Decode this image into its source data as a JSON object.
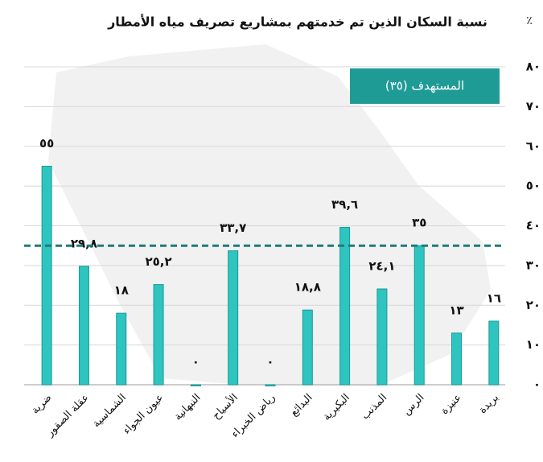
{
  "chart_data": {
    "type": "bar",
    "title": "نسبة السكان الذين تم خدمتهم بمشاريع تصريف مياه الأمطار",
    "y_unit": "٪",
    "categories": [
      "ضرية",
      "عقلة الصقور",
      "الشماسية",
      "عيون الجواء",
      "النبهانية",
      "الأسياح",
      "رياض الخبراء",
      "البدائع",
      "البكيرية",
      "المذنب",
      "الرس",
      "عنيزة",
      "بريدة"
    ],
    "values": [
      55,
      29.8,
      18,
      25.2,
      0,
      33.7,
      0,
      18.8,
      39.6,
      24.1,
      35,
      13,
      16
    ],
    "value_labels": [
      "٥٥",
      "٢٩,٨",
      "١٨",
      "٢٥,٢",
      "٠",
      "٣٣,٧",
      "٠",
      "١٨,٨",
      "٣٩,٦",
      "٢٤,١",
      "٣٥",
      "١٣",
      "١٦"
    ],
    "color": "#2ec4c0",
    "target": {
      "value": 35,
      "label": "المستهدف (٣٥)"
    },
    "ylim": [
      0,
      80
    ],
    "yticks": [
      {
        "value": 0,
        "label": "٠"
      },
      {
        "value": 10,
        "label": "١٠"
      },
      {
        "value": 20,
        "label": "٢٠"
      },
      {
        "value": 30,
        "label": "٣٠"
      },
      {
        "value": 40,
        "label": "٤٠"
      },
      {
        "value": 50,
        "label": "٥٠"
      },
      {
        "value": 60,
        "label": "٦٠"
      },
      {
        "value": 70,
        "label": "٧٠"
      },
      {
        "value": 80,
        "label": "٨٠"
      }
    ],
    "grid": true
  }
}
